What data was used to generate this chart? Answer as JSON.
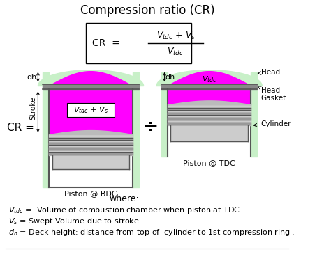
{
  "title": "Compression ratio (CR)",
  "bg_color": "#ffffff",
  "magenta": "#FF00FF",
  "green_hatch": "#c8f0c8",
  "dark_gray": "#555555",
  "gray_piston": "#cccccc",
  "gray_ring": "#999999",
  "gray_gasket": "#888888",
  "where_text": "where:",
  "def1_prefix": "$V_{tdc}$",
  "def1_suffix": " =  Volume of combustion chamber when piston at TDC",
  "def2_prefix": "$V_s$",
  "def2_suffix": " = Swept Volume due to stroke",
  "def3_prefix": "$d_h$",
  "def3_suffix": " = Deck height: distance from top of  cylinder to 1st compression ring ."
}
